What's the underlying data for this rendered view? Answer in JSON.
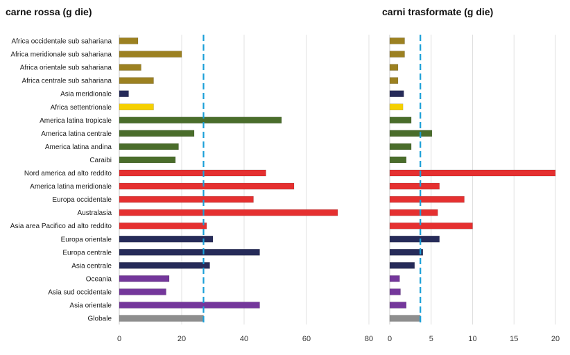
{
  "chart_data": [
    {
      "type": "bar",
      "orientation": "horizontal",
      "title": "carne rossa (g die)",
      "categories": [
        "Africa occidentale sub sahariana",
        "Africa meridionale sub sahariana",
        "Africa orientale sub sahariana",
        "Africa centrale sub sahariana",
        "Asia meridionale",
        "Africa settentrionale",
        "America latina tropicale",
        "America latina centrale",
        "America latina andina",
        "Caraibi",
        "Nord america ad alto reddito",
        "America latina meridionale",
        "Europa occidentale",
        "Australasia",
        "Asia area Pacifico ad alto reddito",
        "Europa orientale",
        "Europa centrale",
        "Asia centrale",
        "Oceania",
        "Asia sud occidentale",
        "Asia orientale",
        "Globale"
      ],
      "values": [
        6,
        20,
        7,
        11,
        3,
        11,
        52,
        24,
        19,
        18,
        47,
        56,
        43,
        70,
        28,
        30,
        45,
        29,
        16,
        15,
        45,
        27
      ],
      "colors": [
        "#9c8121",
        "#9c8121",
        "#9c8121",
        "#9c8121",
        "#262b59",
        "#f5d000",
        "#4a6d2b",
        "#4a6d2b",
        "#4a6d2b",
        "#4a6d2b",
        "#e53030",
        "#e53030",
        "#e53030",
        "#e53030",
        "#e53030",
        "#262b59",
        "#262b59",
        "#262b59",
        "#74379b",
        "#74379b",
        "#74379b",
        "#8e8e8e"
      ],
      "xlim": [
        0,
        80
      ],
      "xticks": [
        0,
        20,
        40,
        60,
        80
      ],
      "reference_line": 27
    },
    {
      "type": "bar",
      "orientation": "horizontal",
      "title": "carni trasformate (g die)",
      "categories": [
        "Africa occidentale sub sahariana",
        "Africa meridionale sub sahariana",
        "Africa orientale sub sahariana",
        "Africa centrale sub sahariana",
        "Asia meridionale",
        "Africa settentrionale",
        "America latina tropicale",
        "America latina centrale",
        "America latina andina",
        "Caraibi",
        "Nord america ad alto reddito",
        "America latina meridionale",
        "Europa occidentale",
        "Australasia",
        "Asia area Pacifico ad alto reddito",
        "Europa orientale",
        "Europa centrale",
        "Asia centrale",
        "Oceania",
        "Asia sud occidentale",
        "Asia orientale",
        "Globale"
      ],
      "values": [
        1.8,
        1.8,
        1.0,
        1.0,
        1.7,
        1.6,
        2.6,
        5.1,
        2.6,
        2.0,
        20,
        6.0,
        9.0,
        5.8,
        10.0,
        6.0,
        4.0,
        3.0,
        1.2,
        1.3,
        2.0,
        3.7
      ],
      "colors": [
        "#9c8121",
        "#9c8121",
        "#9c8121",
        "#9c8121",
        "#262b59",
        "#f5d000",
        "#4a6d2b",
        "#4a6d2b",
        "#4a6d2b",
        "#4a6d2b",
        "#e53030",
        "#e53030",
        "#e53030",
        "#e53030",
        "#e53030",
        "#262b59",
        "#262b59",
        "#262b59",
        "#74379b",
        "#74379b",
        "#74379b",
        "#8e8e8e"
      ],
      "xlim": [
        0,
        20
      ],
      "xticks": [
        0,
        5,
        10,
        15,
        20
      ],
      "reference_line": 3.7
    }
  ],
  "reference_line_color": "#1a9fd8",
  "grid_color": "#e0e0e0",
  "text_color": "#1a1a1a"
}
